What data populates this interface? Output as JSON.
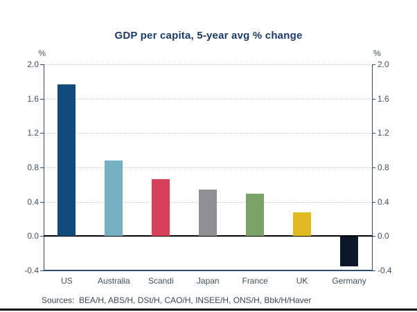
{
  "chart_data": {
    "type": "bar",
    "title": "GDP per capita, 5-year avg % change",
    "ylabel": "%",
    "categories": [
      "US",
      "Australia",
      "Scandi",
      "Japan",
      "France",
      "UK",
      "Germany"
    ],
    "values": [
      1.77,
      0.88,
      0.66,
      0.54,
      0.49,
      0.28,
      -0.35
    ],
    "bar_colors": [
      "#114A7D",
      "#74AFC4",
      "#D84059",
      "#8F8F94",
      "#7BA269",
      "#E0BA20",
      "#0D172B"
    ],
    "ylim": [
      -0.4,
      2.0
    ],
    "yticks": [
      2.0,
      1.6,
      1.2,
      0.8,
      0.4,
      0.0,
      -0.4
    ],
    "grid": "horizontal dotted, at 0.4 intervals above zero",
    "legend": "none",
    "title_color": "#1B3A66",
    "axis_color": "#2C4D71",
    "label_color": "#414F5E",
    "gridline_color": "#C9CCD1",
    "zero_line_color": "#000000"
  },
  "sources": {
    "text": "Sources:  BEA/H, ABS/H, DSt/H, CAO/H, INSEE/H, ONS/H, Bbk/H/Haver"
  }
}
